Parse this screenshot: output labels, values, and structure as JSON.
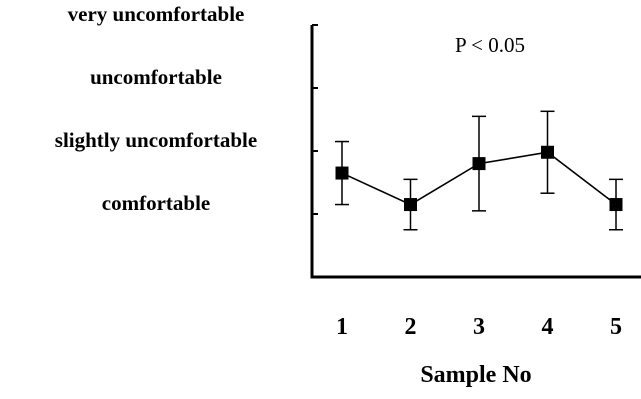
{
  "chart_data": {
    "type": "line",
    "xlabel": "Sample No",
    "ylabel": "",
    "categories": [
      "1",
      "2",
      "3",
      "4",
      "5"
    ],
    "y_tick_labels": [
      {
        "value": 1,
        "label": "comfortable"
      },
      {
        "value": 2,
        "label": "slightly uncomfortable"
      },
      {
        "value": 3,
        "label": "uncomfortable"
      },
      {
        "value": 4,
        "label": "very uncomfortable"
      }
    ],
    "ylim": [
      0,
      4
    ],
    "series": [
      {
        "values": [
          1.65,
          1.15,
          1.8,
          1.98,
          1.15
        ],
        "error_bars": [
          0.5,
          0.4,
          0.75,
          0.65,
          0.4
        ]
      }
    ],
    "annotation": "P < 0.05",
    "grid": false,
    "marker": "square",
    "line_color": "#000000"
  }
}
